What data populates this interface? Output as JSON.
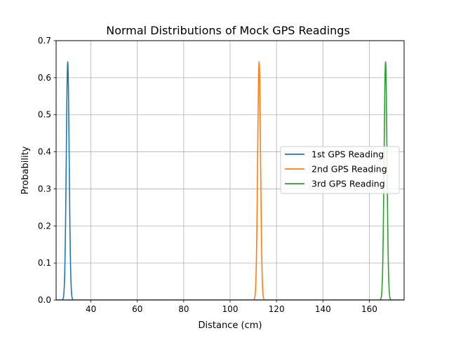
{
  "chart_data": {
    "type": "line",
    "title": "Normal Distributions of Mock GPS Readings",
    "xlabel": "Distance (cm)",
    "ylabel": "Probability",
    "xlim": [
      25,
      175
    ],
    "ylim": [
      0,
      0.7
    ],
    "xticks": [
      40,
      60,
      80,
      100,
      120,
      140,
      160
    ],
    "yticks": [
      0.0,
      0.1,
      0.2,
      0.3,
      0.4,
      0.5,
      0.6,
      0.7
    ],
    "xtick_labels": [
      "40",
      "60",
      "80",
      "100",
      "120",
      "140",
      "160"
    ],
    "ytick_labels": [
      "0.0",
      "0.1",
      "0.2",
      "0.3",
      "0.4",
      "0.5",
      "0.6",
      "0.7"
    ],
    "grid": true,
    "legend_position": "center-right",
    "series": [
      {
        "name": "1st GPS Reading",
        "mean": 30,
        "std": 0.62,
        "peak": 0.643,
        "color": "#1f77b4"
      },
      {
        "name": "2nd GPS Reading",
        "mean": 112.5,
        "std": 0.62,
        "peak": 0.643,
        "color": "#ff7f0e"
      },
      {
        "name": "3rd GPS Reading",
        "mean": 167,
        "std": 0.62,
        "peak": 0.643,
        "color": "#2ca02c"
      }
    ]
  }
}
